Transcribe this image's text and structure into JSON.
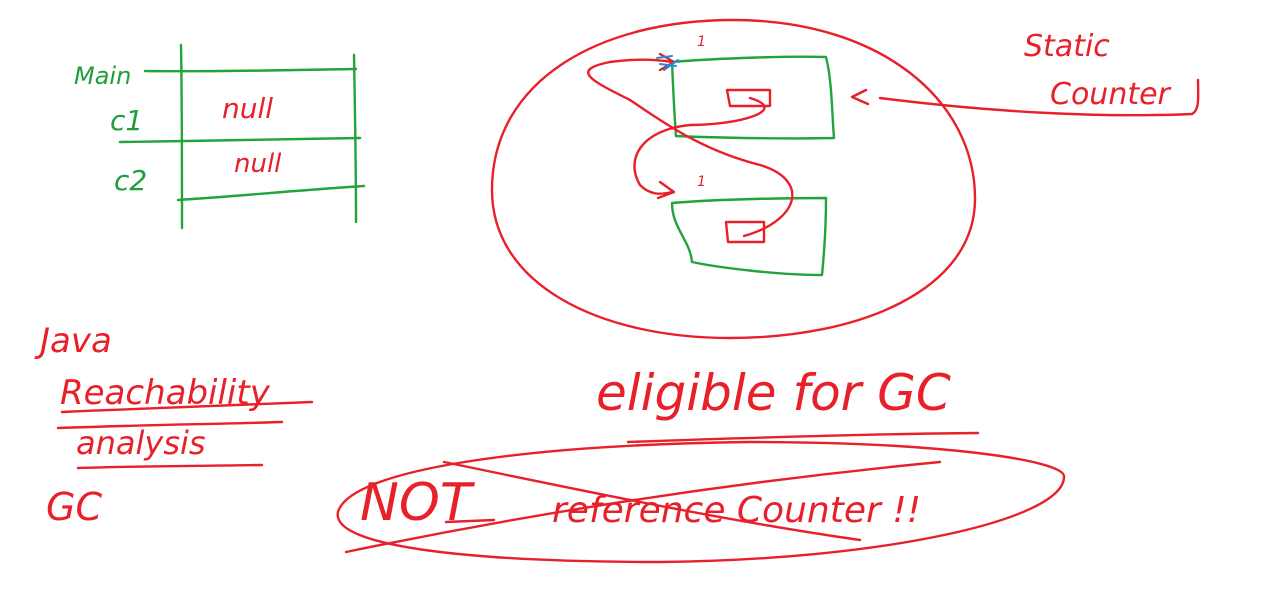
{
  "stack_frame": {
    "frame_label": "Main",
    "rows": [
      {
        "var": "c1",
        "value": "null"
      },
      {
        "var": "c2",
        "value": "null"
      }
    ]
  },
  "objects": {
    "top_ref_count": "1",
    "bottom_ref_count": "1"
  },
  "static_ref": {
    "label": "Static",
    "label2": "Counter"
  },
  "notes": {
    "gc_label": "eligible for GC",
    "java_label": "Java",
    "reachability_label": "Reachability",
    "analysis_label": "analysis",
    "gc_short": "GC",
    "not_label": "NOT",
    "ref_counter_label": "reference Counter !!"
  },
  "colors": {
    "red": "#e8202a",
    "green": "#22a33b",
    "blue": "#1f8fd6"
  }
}
